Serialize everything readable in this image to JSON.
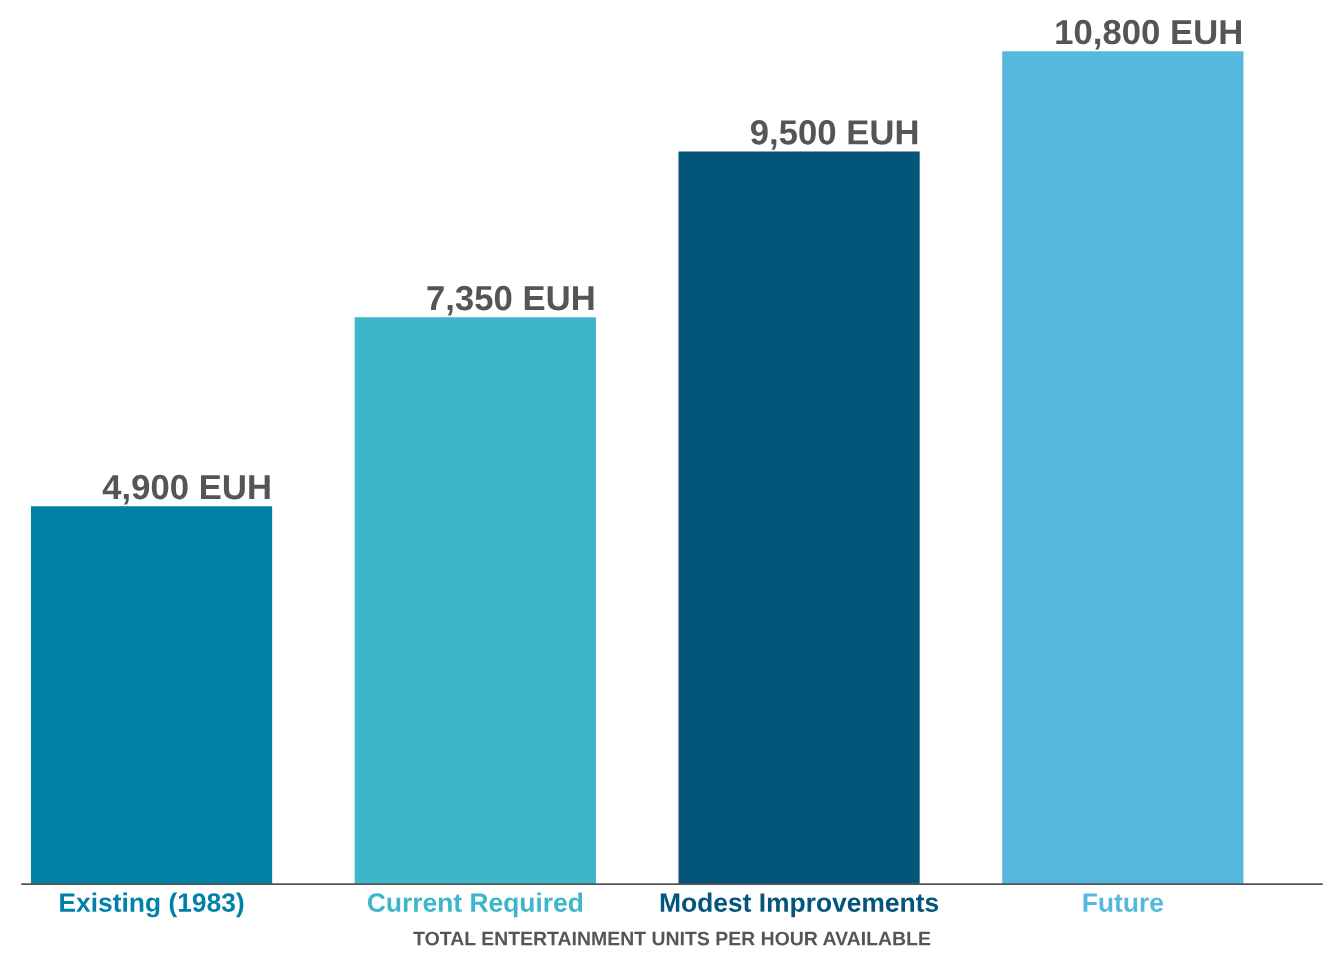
{
  "chart_data": {
    "type": "bar",
    "categories": [
      "Existing (1983)",
      "Current Required",
      "Modest Improvements",
      "Future"
    ],
    "values": [
      4900,
      7350,
      9500,
      10800
    ],
    "colors": [
      "#0281a8",
      "#3db6c9",
      "#04557a",
      "#56b8de"
    ],
    "value_labels": [
      "4,900 EUH",
      "7,350 EUH",
      "9,500 EUH",
      "10,800 EUH"
    ],
    "xlabel": "TOTAL ENTERTAINMENT UNITS PER HOUR AVAILABLE",
    "tick_labels": "x",
    "grid": false,
    "legend": false
  }
}
